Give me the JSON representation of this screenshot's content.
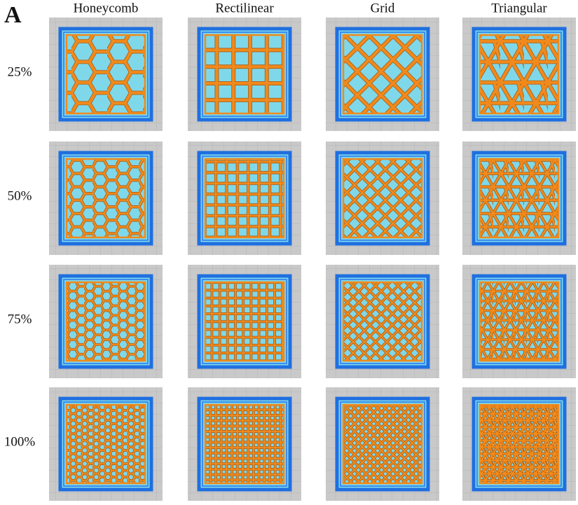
{
  "panel_label": "A",
  "columns": [
    "Honeycomb",
    "Rectilinear",
    "Grid",
    "Triangular"
  ],
  "rows": [
    "25%",
    "50%",
    "75%",
    "100%"
  ]
}
